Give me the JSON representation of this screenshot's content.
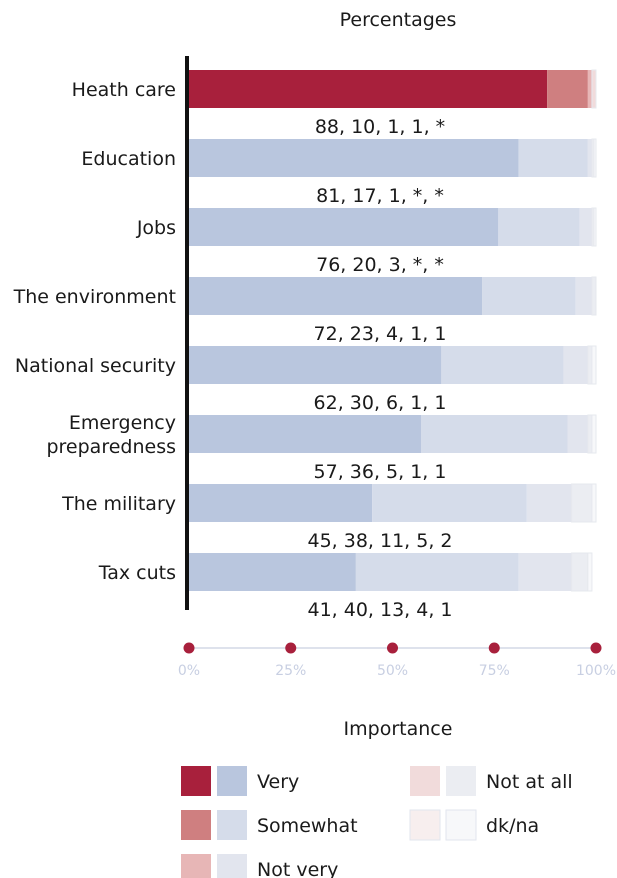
{
  "colors": {
    "very_highlight": "#a8203c",
    "somewhat_highlight": "#cf7f80",
    "notvery_highlight": "#e7b6b6",
    "notatall_highlight": "#f1dbdb",
    "dkna_highlight": "#f7eeee",
    "very": "#b9c6de",
    "somewhat": "#d5dcea",
    "notvery": "#e2e5ee",
    "notatall": "#ebedf2",
    "dkna": "#f7f8fa",
    "axis": "#111111",
    "dots": "#a8203c",
    "tick_text": "#c8cfe2"
  },
  "chart_data": {
    "type": "bar",
    "orientation": "horizontal",
    "stacked": true,
    "title": "Percentages",
    "xlabel": "Importance",
    "xlim": [
      0,
      100
    ],
    "xticks": [
      "0%",
      "25%",
      "50%",
      "75%",
      "100%"
    ],
    "xtick_values": [
      0,
      25,
      50,
      75,
      100
    ],
    "categories": [
      "Heath care",
      "Education",
      "Jobs",
      "The environment",
      "National security",
      "Emergency preparedness",
      "The military",
      "Tax cuts"
    ],
    "category_lines": [
      [
        "Heath care"
      ],
      [
        "Education"
      ],
      [
        "Jobs"
      ],
      [
        "The environment"
      ],
      [
        "National security"
      ],
      [
        "Emergency",
        "preparedness"
      ],
      [
        "The military"
      ],
      [
        "Tax cuts"
      ]
    ],
    "highlighted_category": "Heath care",
    "series": [
      {
        "name": "Very",
        "values": [
          88,
          81,
          76,
          72,
          62,
          57,
          45,
          41
        ]
      },
      {
        "name": "Somewhat",
        "values": [
          10,
          17,
          20,
          23,
          30,
          36,
          38,
          40
        ]
      },
      {
        "name": "Not very",
        "values": [
          1,
          1,
          3,
          4,
          6,
          5,
          11,
          13
        ]
      },
      {
        "name": "Not at all",
        "values": [
          1,
          0.5,
          0.5,
          1,
          1,
          1,
          5,
          4
        ]
      },
      {
        "name": "dk/na",
        "values": [
          0.5,
          0.5,
          0.5,
          1,
          1,
          1,
          2,
          1
        ]
      }
    ],
    "value_labels": [
      "88, 10, 1, 1, *",
      "81, 17, 1, *, *",
      "76, 20, 3, *, *",
      "72, 23, 4, 1, 1",
      "62, 30, 6, 1, 1",
      "57, 36, 5, 1, 1",
      "45, 38, 11, 5, 2",
      "41, 40, 13, 4, 1"
    ],
    "legend": [
      {
        "label": "Very",
        "swatches": [
          "very_highlight",
          "very"
        ]
      },
      {
        "label": "Somewhat",
        "swatches": [
          "somewhat_highlight",
          "somewhat"
        ]
      },
      {
        "label": "Not very",
        "swatches": [
          "notvery_highlight",
          "notvery"
        ]
      },
      {
        "label": "Not at all",
        "swatches": [
          "notatall_highlight",
          "notatall"
        ]
      },
      {
        "label": "dk/na",
        "swatches": [
          "dkna_highlight",
          "dkna"
        ]
      }
    ]
  }
}
